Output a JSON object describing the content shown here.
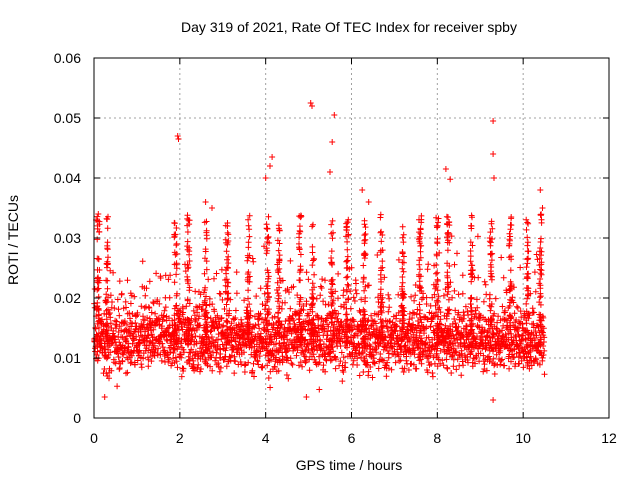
{
  "chart_data": {
    "type": "scatter",
    "title": "Day 319 of 2021, Rate Of TEC Index for receiver spby",
    "xlabel": "GPS time / hours",
    "ylabel": "ROTI / TECUs",
    "xlim": [
      0,
      12
    ],
    "ylim": [
      0,
      0.06
    ],
    "x_ticks": [
      0,
      2,
      4,
      6,
      8,
      10,
      12
    ],
    "y_ticks": [
      0,
      0.01,
      0.02,
      0.03,
      0.04,
      0.05,
      0.06
    ],
    "x_tick_labels": [
      "0",
      "2",
      "4",
      "6",
      "8",
      "10",
      "12"
    ],
    "y_tick_labels": [
      "0",
      "0.01",
      "0.02",
      "0.03",
      "0.04",
      "0.05",
      "0.06"
    ],
    "grid": true,
    "marker": "+",
    "color": "#ff0000",
    "series": [
      {
        "name": "ROTI",
        "x_range": [
          0,
          10.5
        ],
        "typical_range": [
          0.005,
          0.025
        ],
        "notable_points": [
          {
            "x": 0.05,
            "y": 0.033
          },
          {
            "x": 0.1,
            "y": 0.034
          },
          {
            "x": 0.12,
            "y": 0.031
          },
          {
            "x": 1.95,
            "y": 0.047
          },
          {
            "x": 1.97,
            "y": 0.0465
          },
          {
            "x": 2.6,
            "y": 0.036
          },
          {
            "x": 2.75,
            "y": 0.035
          },
          {
            "x": 4.0,
            "y": 0.04
          },
          {
            "x": 4.1,
            "y": 0.042
          },
          {
            "x": 4.15,
            "y": 0.0435
          },
          {
            "x": 5.05,
            "y": 0.0525
          },
          {
            "x": 5.08,
            "y": 0.052
          },
          {
            "x": 5.6,
            "y": 0.0505
          },
          {
            "x": 5.55,
            "y": 0.046
          },
          {
            "x": 5.5,
            "y": 0.041
          },
          {
            "x": 6.25,
            "y": 0.038
          },
          {
            "x": 6.4,
            "y": 0.036
          },
          {
            "x": 8.2,
            "y": 0.0415
          },
          {
            "x": 8.3,
            "y": 0.0398
          },
          {
            "x": 9.3,
            "y": 0.0495
          },
          {
            "x": 9.3,
            "y": 0.044
          },
          {
            "x": 9.32,
            "y": 0.04
          },
          {
            "x": 10.4,
            "y": 0.038
          },
          {
            "x": 10.45,
            "y": 0.035
          },
          {
            "x": 4.95,
            "y": 0.0035
          },
          {
            "x": 9.3,
            "y": 0.003
          },
          {
            "x": 0.25,
            "y": 0.0035
          }
        ]
      }
    ]
  }
}
